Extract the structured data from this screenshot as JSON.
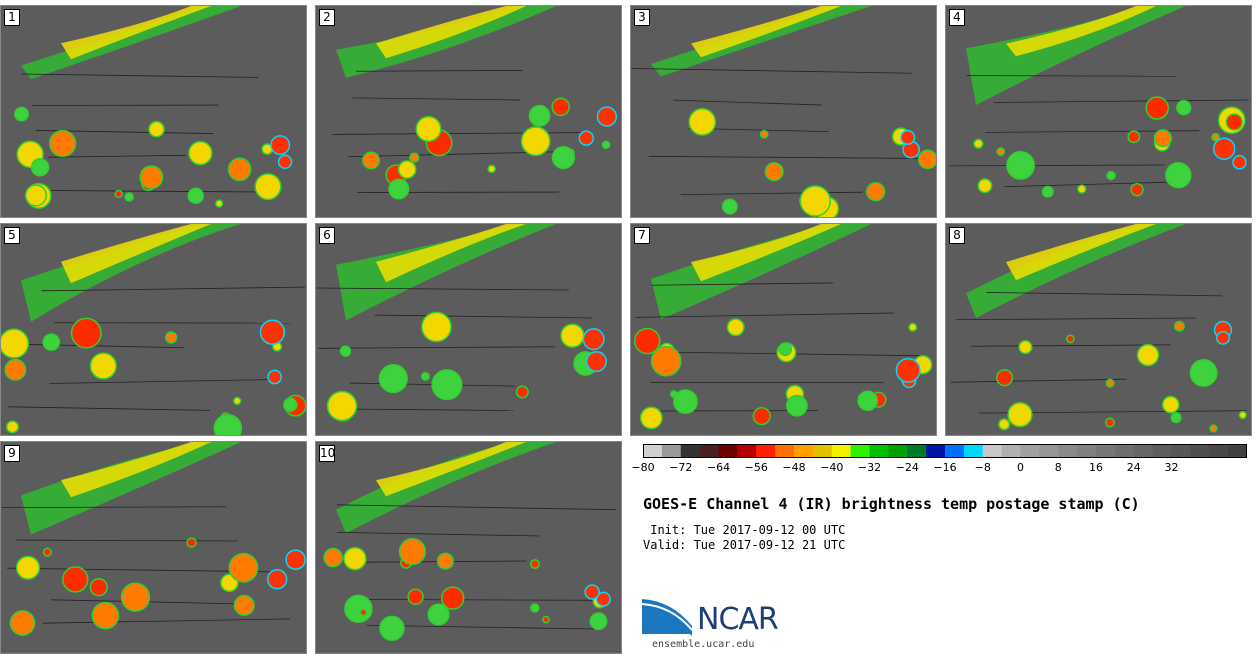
{
  "panels": [
    {
      "label": "1"
    },
    {
      "label": "2"
    },
    {
      "label": "3"
    },
    {
      "label": "4"
    },
    {
      "label": "5"
    },
    {
      "label": "6"
    },
    {
      "label": "7"
    },
    {
      "label": "8"
    },
    {
      "label": "9"
    },
    {
      "label": "10"
    }
  ],
  "colorbar": {
    "colors": [
      "#d0d0d0",
      "#9a9a9a",
      "#333333",
      "#4a1f1f",
      "#6e0000",
      "#b50000",
      "#ff2000",
      "#ff7000",
      "#ffa000",
      "#e0c000",
      "#f2f200",
      "#30f000",
      "#00c000",
      "#00a000",
      "#007a2a",
      "#0014a8",
      "#0070ff",
      "#00d8ff",
      "#c8c8c8",
      "#b0b0b0",
      "#a0a0a0",
      "#959595",
      "#8a8a8a",
      "#808080",
      "#777777",
      "#6e6e6e",
      "#666666",
      "#5e5e5e",
      "#575757",
      "#4f4f4f",
      "#484848",
      "#404040"
    ],
    "tick_labels": [
      "−80",
      "−72",
      "−64",
      "−56",
      "−48",
      "−40",
      "−32",
      "−24",
      "−16",
      "−8",
      "0",
      "8",
      "16",
      "24",
      "32"
    ]
  },
  "title": "GOES-E Channel 4 (IR) brightness temp postage stamp (C)",
  "init": " Init: Tue 2017-09-12 00 UTC",
  "valid": "Valid: Tue 2017-09-12 21 UTC",
  "logo": {
    "text": "NCAR",
    "url": "ensemble.ucar.edu",
    "color": "#1f3e76",
    "accent": "#1b78c0"
  }
}
